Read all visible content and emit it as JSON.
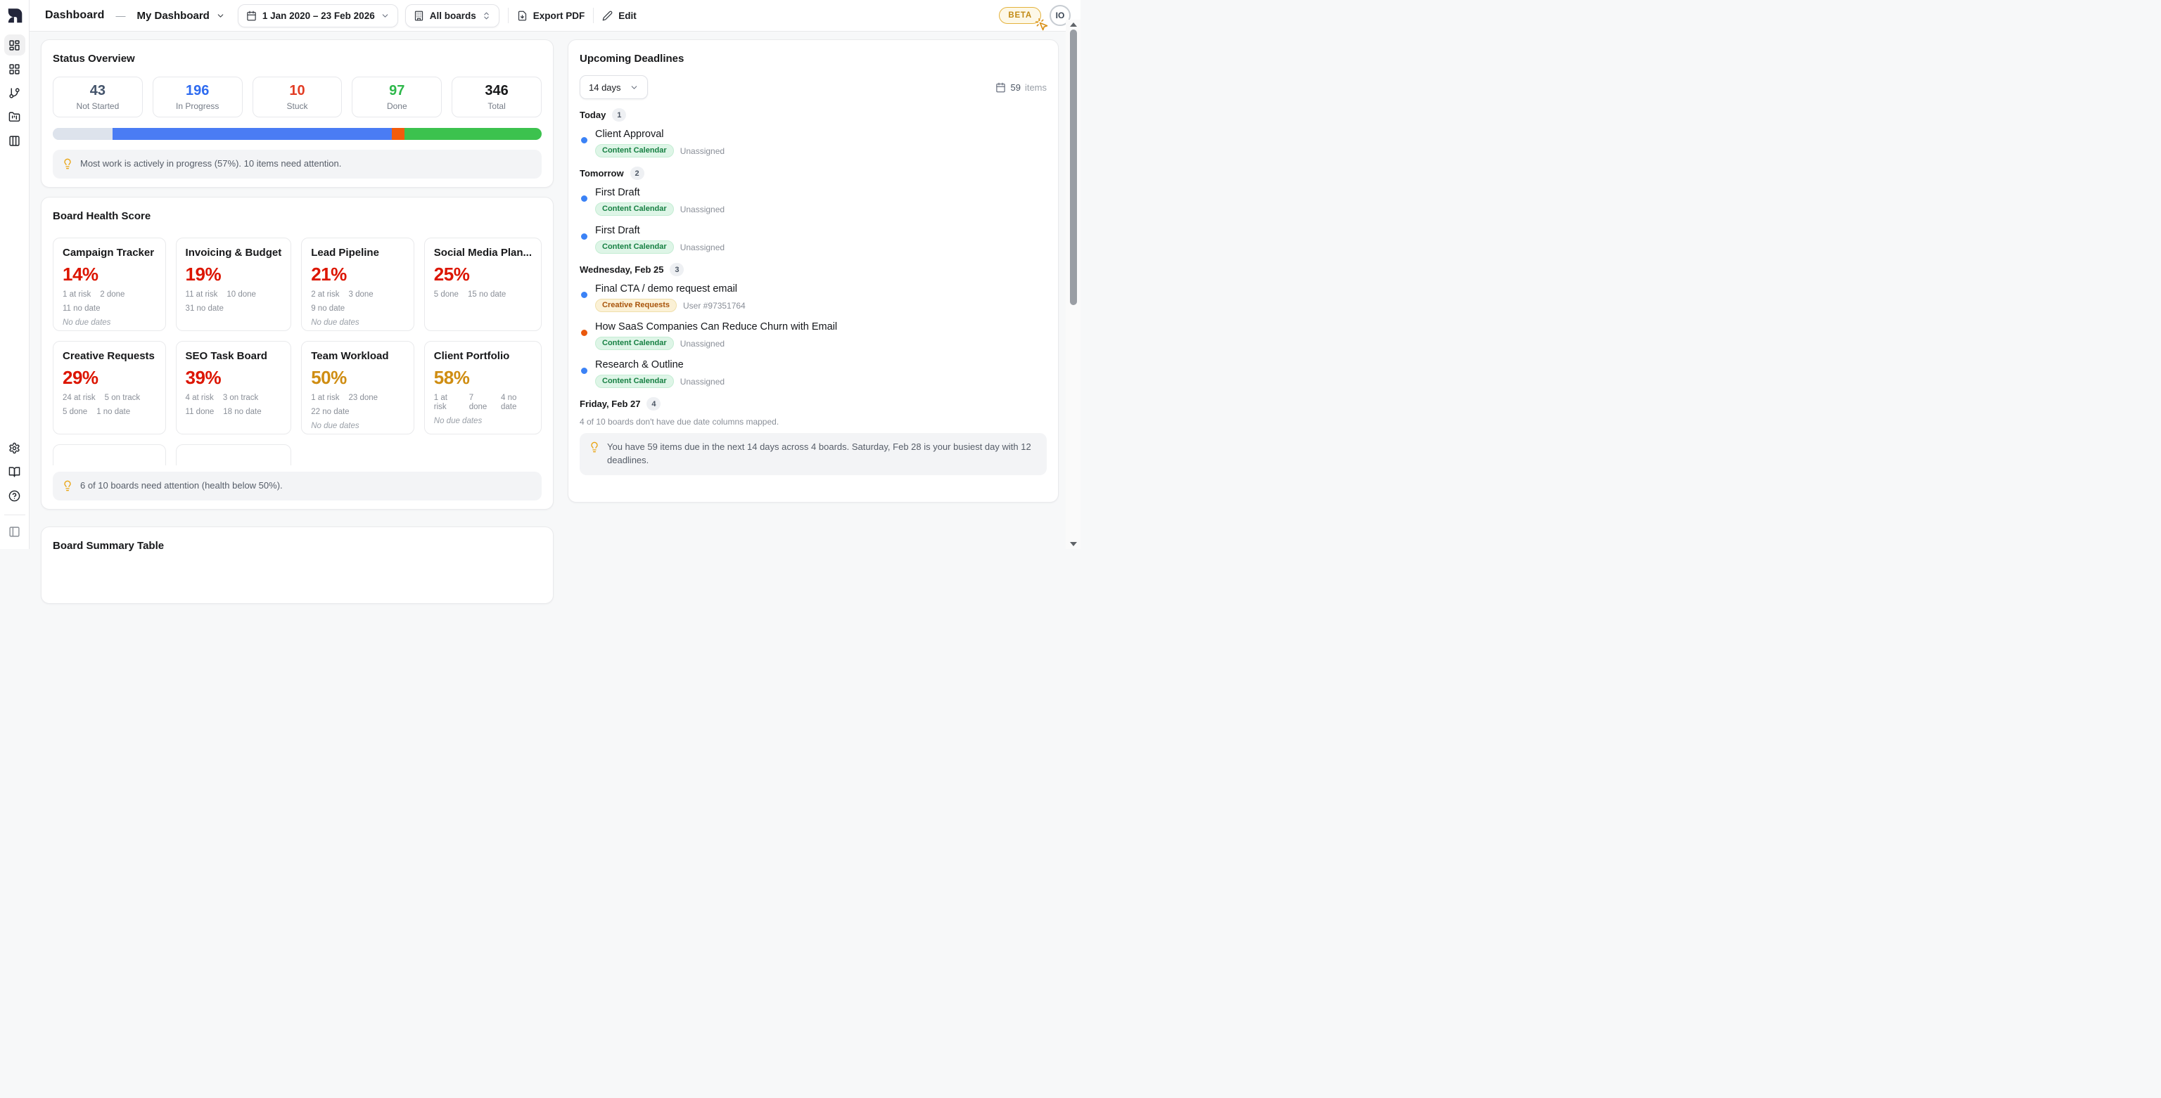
{
  "header": {
    "section": "Dashboard",
    "separator": "—",
    "dashboard_name": "My Dashboard",
    "date_range": "1 Jan 2020 – 23 Feb 2026",
    "boards_filter": "All boards",
    "export_pdf": "Export PDF",
    "edit": "Edit",
    "beta": "BETA",
    "avatar": "IO"
  },
  "sidebar": {
    "icons": [
      "dashboard-icon",
      "apps-grid-icon",
      "git-branch-icon",
      "folder-kanban-icon",
      "columns-icon",
      "settings-gear-icon",
      "book-icon",
      "help-circle-icon",
      "panel-toggle-icon"
    ]
  },
  "colors": {
    "not_started": "#44546b",
    "in_progress": "#2e6bf0",
    "stuck": "#e23c24",
    "done": "#2eb84b",
    "health_low": "#dc1500",
    "health_mid": "#cf8d12",
    "bar_blue": "#4a7cf4",
    "bar_orange": "#f25c0c",
    "bar_green": "#3cc24e",
    "bar_gray": "#dde3ec"
  },
  "status_overview": {
    "title": "Status Overview",
    "stats": [
      {
        "value": "43",
        "label": "Not Started"
      },
      {
        "value": "196",
        "label": "In Progress"
      },
      {
        "value": "10",
        "label": "Stuck"
      },
      {
        "value": "97",
        "label": "Done"
      },
      {
        "value": "346",
        "label": "Total"
      }
    ],
    "bar": {
      "not_started_pct": 12.3,
      "in_progress_pct": 57.0,
      "stuck_pct": 2.7,
      "done_pct": 28.0
    },
    "insight": "Most work is actively in progress (57%). 10 items need attention."
  },
  "board_health": {
    "title": "Board Health Score",
    "cards": [
      {
        "name": "Campaign Tracker",
        "score": "14%",
        "level": "low",
        "row1": [
          "1 at risk",
          "2 done"
        ],
        "row2": [
          "11 no date"
        ],
        "note": "No due dates"
      },
      {
        "name": "Invoicing & Budget",
        "score": "19%",
        "level": "low",
        "row1": [
          "11 at risk",
          "10 done"
        ],
        "row2": [
          "31 no date"
        ],
        "note": ""
      },
      {
        "name": "Lead Pipeline",
        "score": "21%",
        "level": "low",
        "row1": [
          "2 at risk",
          "3 done"
        ],
        "row2": [
          "9 no date"
        ],
        "note": "No due dates"
      },
      {
        "name": "Social Media Plan...",
        "score": "25%",
        "level": "low",
        "row1": [
          "5 done",
          "15 no date"
        ],
        "row2": [],
        "note": ""
      },
      {
        "name": "Creative Requests",
        "score": "29%",
        "level": "low",
        "row1": [
          "24 at risk",
          "5 on track"
        ],
        "row2": [
          "5 done",
          "1 no date"
        ],
        "note": ""
      },
      {
        "name": "SEO Task Board",
        "score": "39%",
        "level": "low",
        "row1": [
          "4 at risk",
          "3 on track"
        ],
        "row2": [
          "11 done",
          "18 no date"
        ],
        "note": ""
      },
      {
        "name": "Team Workload",
        "score": "50%",
        "level": "mid",
        "row1": [
          "1 at risk",
          "23 done"
        ],
        "row2": [
          "22 no date"
        ],
        "note": "No due dates"
      },
      {
        "name": "Client Portfolio",
        "score": "58%",
        "level": "mid",
        "row1": [
          "1 at risk",
          "7 done",
          "4 no date"
        ],
        "row2": [],
        "note": "No due dates"
      }
    ],
    "insight": "6 of 10 boards need attention (health below 50%)."
  },
  "deadlines": {
    "title": "Upcoming Deadlines",
    "range": "14 days",
    "count": "59",
    "count_label": "items",
    "groups": [
      {
        "label": "Today",
        "count": "1",
        "items": [
          {
            "title": "Client Approval",
            "dot": "blue",
            "board": "Content Calendar",
            "board_style": "green",
            "assignee": "Unassigned"
          }
        ]
      },
      {
        "label": "Tomorrow",
        "count": "2",
        "items": [
          {
            "title": "First Draft",
            "dot": "blue",
            "board": "Content Calendar",
            "board_style": "green",
            "assignee": "Unassigned"
          },
          {
            "title": "First Draft",
            "dot": "blue",
            "board": "Content Calendar",
            "board_style": "green",
            "assignee": "Unassigned"
          }
        ]
      },
      {
        "label": "Wednesday, Feb 25",
        "count": "3",
        "items": [
          {
            "title": "Final CTA / demo request email",
            "dot": "blue",
            "board": "Creative Requests",
            "board_style": "amber",
            "assignee": "User #97351764"
          },
          {
            "title": "How SaaS Companies Can Reduce Churn with Email",
            "dot": "orange",
            "board": "Content Calendar",
            "board_style": "green",
            "assignee": "Unassigned"
          },
          {
            "title": "Research & Outline",
            "dot": "blue",
            "board": "Content Calendar",
            "board_style": "green",
            "assignee": "Unassigned"
          }
        ]
      },
      {
        "label": "Friday, Feb 27",
        "count": "4",
        "items": []
      }
    ],
    "footnote": "4 of 10 boards don't have due date columns mapped.",
    "insight": "You have 59 items due in the next 14 days across 4 boards. Saturday, Feb 28 is your busiest day with 12 deadlines."
  },
  "board_summary": {
    "title": "Board Summary Table"
  }
}
